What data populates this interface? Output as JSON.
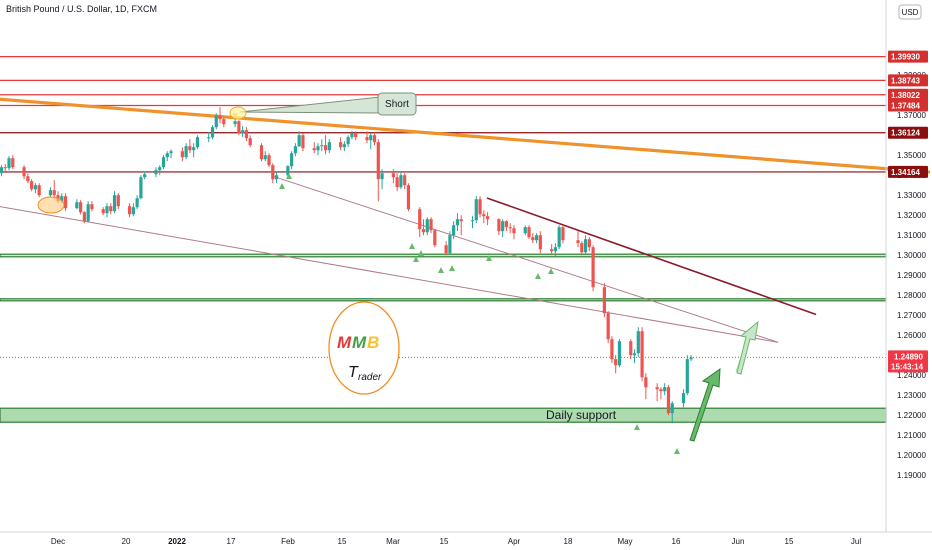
{
  "chart_data": {
    "type": "candlestick",
    "title": "British Pound / U.S. Dollar, 1D, FXCM",
    "currency": "USD",
    "y_ticks": [
      "1.39000",
      "1.38000",
      "1.37000",
      "1.36000",
      "1.35000",
      "1.34000",
      "1.33000",
      "1.32000",
      "1.31000",
      "1.30000",
      "1.29000",
      "1.28000",
      "1.27000",
      "1.26000",
      "1.25000",
      "1.24000",
      "1.23000",
      "1.22000",
      "1.21000",
      "1.20000",
      "1.19000"
    ],
    "x_ticks": [
      "Dec",
      "20",
      "2022",
      "17",
      "Feb",
      "15",
      "Mar",
      "15",
      "Apr",
      "18",
      "May",
      "16",
      "Jun",
      "15",
      "Jul"
    ],
    "resistance_levels": [
      {
        "value": 1.3993,
        "label": "1.39930"
      },
      {
        "value": 1.38743,
        "label": "1.38743"
      },
      {
        "value": 1.38022,
        "label": "1.38022"
      },
      {
        "value": 1.37484,
        "label": "1.37484"
      },
      {
        "value": 1.36124,
        "label": "1.36124"
      },
      {
        "value": 1.34164,
        "label": "1.34164"
      }
    ],
    "last_price": {
      "value": 1.2489,
      "label": "1.24890",
      "countdown": "15:43:14"
    },
    "zones": [
      {
        "low": 1.2992,
        "high": 1.3005
      },
      {
        "low": 1.2772,
        "high": 1.2782
      },
      {
        "low": 1.2165,
        "high": 1.2235,
        "label": "Daily support"
      }
    ],
    "trendlines": [
      {
        "from": [
          "2021-11-12",
          1.3785
        ],
        "to": [
          "2022-07-20",
          1.3416
        ]
      },
      {
        "from": [
          "2022-03-25",
          1.3285
        ],
        "to": [
          "2022-06-20",
          1.2705
        ]
      },
      {
        "from": [
          "2021-11-12",
          1.3255
        ],
        "to": [
          "2022-06-10",
          1.2565
        ]
      },
      {
        "from": [
          "2022-01-27",
          1.3395
        ],
        "to": [
          "2022-06-10",
          1.2565
        ]
      }
    ],
    "annotations": {
      "short_label": "Short",
      "logo_top": "MMB",
      "logo_bottom": "Trader",
      "support_label": "Daily support"
    },
    "ohlc": [
      [
        "2021-11-12",
        1.3405,
        1.3455,
        1.3385,
        1.3425
      ],
      [
        "2021-11-15",
        1.3425,
        1.3445,
        1.339,
        1.341
      ],
      [
        "2021-11-16",
        1.341,
        1.345,
        1.3395,
        1.344
      ],
      [
        "2021-11-17",
        1.344,
        1.3455,
        1.341,
        1.3435
      ],
      [
        "2021-11-18",
        1.3435,
        1.3495,
        1.3425,
        1.3485
      ],
      [
        "2021-11-19",
        1.3485,
        1.35,
        1.343,
        1.344
      ],
      [
        "2021-11-22",
        1.344,
        1.345,
        1.338,
        1.3395
      ],
      [
        "2021-11-23",
        1.3395,
        1.341,
        1.336,
        1.337
      ],
      [
        "2021-11-24",
        1.337,
        1.338,
        1.332,
        1.333
      ],
      [
        "2021-11-25",
        1.333,
        1.336,
        1.331,
        1.335
      ],
      [
        "2021-11-26",
        1.335,
        1.336,
        1.329,
        1.33
      ],
      [
        "2021-11-29",
        1.33,
        1.334,
        1.329,
        1.3325
      ],
      [
        "2021-11-30",
        1.3325,
        1.3375,
        1.328,
        1.33
      ],
      [
        "2021-12-01",
        1.33,
        1.332,
        1.326,
        1.327
      ],
      [
        "2021-12-02",
        1.327,
        1.331,
        1.326,
        1.3295
      ],
      [
        "2021-12-03",
        1.3295,
        1.331,
        1.322,
        1.3235
      ],
      [
        "2021-12-06",
        1.3235,
        1.328,
        1.323,
        1.3265
      ],
      [
        "2021-12-07",
        1.3265,
        1.3275,
        1.3205,
        1.3215
      ],
      [
        "2021-12-08",
        1.3215,
        1.322,
        1.316,
        1.317
      ],
      [
        "2021-12-09",
        1.317,
        1.327,
        1.3165,
        1.3255
      ],
      [
        "2021-12-10",
        1.3255,
        1.327,
        1.322,
        1.323
      ],
      [
        "2021-12-13",
        1.323,
        1.324,
        1.32,
        1.321
      ],
      [
        "2021-12-14",
        1.321,
        1.326,
        1.319,
        1.3245
      ],
      [
        "2021-12-15",
        1.3245,
        1.326,
        1.3205,
        1.322
      ],
      [
        "2021-12-16",
        1.322,
        1.332,
        1.321,
        1.33
      ],
      [
        "2021-12-17",
        1.33,
        1.331,
        1.323,
        1.3245
      ],
      [
        "2021-12-20",
        1.3245,
        1.326,
        1.319,
        1.3205
      ],
      [
        "2021-12-21",
        1.3205,
        1.326,
        1.3195,
        1.324
      ],
      [
        "2021-12-22",
        1.324,
        1.33,
        1.323,
        1.3285
      ],
      [
        "2021-12-23",
        1.3285,
        1.34,
        1.328,
        1.339
      ],
      [
        "2021-12-24",
        1.339,
        1.342,
        1.338,
        1.3405
      ],
      [
        "2021-12-27",
        1.3405,
        1.344,
        1.339,
        1.3425
      ],
      [
        "2021-12-28",
        1.3425,
        1.345,
        1.34,
        1.344
      ],
      [
        "2021-12-29",
        1.344,
        1.35,
        1.343,
        1.349
      ],
      [
        "2021-12-30",
        1.349,
        1.352,
        1.347,
        1.351
      ],
      [
        "2021-12-31",
        1.351,
        1.353,
        1.3485,
        1.352
      ],
      [
        "2022-01-03",
        1.352,
        1.354,
        1.347,
        1.349
      ],
      [
        "2022-01-04",
        1.349,
        1.356,
        1.348,
        1.3545
      ],
      [
        "2022-01-05",
        1.3545,
        1.358,
        1.351,
        1.3525
      ],
      [
        "2022-01-06",
        1.3525,
        1.356,
        1.349,
        1.354
      ],
      [
        "2022-01-07",
        1.354,
        1.36,
        1.353,
        1.359
      ],
      [
        "2022-01-10",
        1.359,
        1.3615,
        1.3565,
        1.359
      ],
      [
        "2022-01-11",
        1.359,
        1.365,
        1.358,
        1.364
      ],
      [
        "2022-01-12",
        1.364,
        1.371,
        1.363,
        1.37
      ],
      [
        "2022-01-13",
        1.37,
        1.374,
        1.366,
        1.368
      ],
      [
        "2022-01-14",
        1.368,
        1.369,
        1.364,
        1.3655
      ],
      [
        "2022-01-17",
        1.3655,
        1.369,
        1.364,
        1.367
      ],
      [
        "2022-01-18",
        1.367,
        1.3675,
        1.36,
        1.361
      ],
      [
        "2022-01-19",
        1.361,
        1.3645,
        1.359,
        1.3625
      ],
      [
        "2022-01-20",
        1.3625,
        1.364,
        1.357,
        1.3585
      ],
      [
        "2022-01-21",
        1.3585,
        1.36,
        1.354,
        1.355
      ],
      [
        "2022-01-24",
        1.355,
        1.356,
        1.347,
        1.348
      ],
      [
        "2022-01-25",
        1.348,
        1.352,
        1.347,
        1.35
      ],
      [
        "2022-01-26",
        1.35,
        1.351,
        1.344,
        1.345
      ],
      [
        "2022-01-27",
        1.345,
        1.346,
        1.336,
        1.338
      ],
      [
        "2022-01-28",
        1.338,
        1.342,
        1.336,
        1.34
      ],
      [
        "2022-01-31",
        1.34,
        1.345,
        1.339,
        1.3445
      ],
      [
        "2022-02-01",
        1.3445,
        1.352,
        1.343,
        1.351
      ],
      [
        "2022-02-02",
        1.351,
        1.356,
        1.3495,
        1.3545
      ],
      [
        "2022-02-03",
        1.3545,
        1.362,
        1.354,
        1.36
      ],
      [
        "2022-02-04",
        1.36,
        1.361,
        1.352,
        1.3535
      ],
      [
        "2022-02-07",
        1.3535,
        1.3565,
        1.351,
        1.3525
      ],
      [
        "2022-02-08",
        1.3525,
        1.356,
        1.35,
        1.3545
      ],
      [
        "2022-02-09",
        1.3545,
        1.358,
        1.352,
        1.355
      ],
      [
        "2022-02-10",
        1.355,
        1.36,
        1.3505,
        1.3525
      ],
      [
        "2022-02-11",
        1.3525,
        1.358,
        1.351,
        1.3565
      ],
      [
        "2022-02-14",
        1.3565,
        1.359,
        1.3525,
        1.354
      ],
      [
        "2022-02-15",
        1.354,
        1.357,
        1.352,
        1.3555
      ],
      [
        "2022-02-16",
        1.3555,
        1.36,
        1.354,
        1.359
      ],
      [
        "2022-02-17",
        1.359,
        1.362,
        1.358,
        1.361
      ],
      [
        "2022-02-18",
        1.361,
        1.362,
        1.3575,
        1.359
      ],
      [
        "2022-02-21",
        1.359,
        1.362,
        1.356,
        1.3575
      ],
      [
        "2022-02-22",
        1.3575,
        1.361,
        1.353,
        1.36
      ],
      [
        "2022-02-23",
        1.36,
        1.3615,
        1.355,
        1.3565
      ],
      [
        "2022-02-24",
        1.3565,
        1.358,
        1.327,
        1.338
      ],
      [
        "2022-02-25",
        1.338,
        1.343,
        1.333,
        1.341
      ],
      [
        "2022-02-28",
        1.341,
        1.343,
        1.336,
        1.339
      ],
      [
        "2022-03-01",
        1.339,
        1.341,
        1.332,
        1.334
      ],
      [
        "2022-03-02",
        1.334,
        1.342,
        1.333,
        1.34
      ],
      [
        "2022-03-03",
        1.34,
        1.341,
        1.333,
        1.335
      ],
      [
        "2022-03-04",
        1.335,
        1.336,
        1.322,
        1.323
      ],
      [
        "2022-03-07",
        1.323,
        1.324,
        1.309,
        1.313
      ],
      [
        "2022-03-08",
        1.313,
        1.318,
        1.31,
        1.3115
      ],
      [
        "2022-03-09",
        1.3115,
        1.319,
        1.31,
        1.318
      ],
      [
        "2022-03-10",
        1.318,
        1.319,
        1.311,
        1.3125
      ],
      [
        "2022-03-11",
        1.3125,
        1.313,
        1.304,
        1.305
      ],
      [
        "2022-03-14",
        1.305,
        1.307,
        1.3,
        1.301
      ],
      [
        "2022-03-15",
        1.301,
        1.312,
        1.3005,
        1.31
      ],
      [
        "2022-03-16",
        1.31,
        1.317,
        1.308,
        1.315
      ],
      [
        "2022-03-17",
        1.315,
        1.321,
        1.312,
        1.318
      ],
      [
        "2022-03-18",
        1.318,
        1.32,
        1.31,
        1.317
      ],
      [
        "2022-03-21",
        1.317,
        1.3195,
        1.3135,
        1.3175
      ],
      [
        "2022-03-22",
        1.3175,
        1.3295,
        1.316,
        1.328
      ],
      [
        "2022-03-23",
        1.328,
        1.3295,
        1.319,
        1.3205
      ],
      [
        "2022-03-24",
        1.3205,
        1.3225,
        1.316,
        1.3195
      ],
      [
        "2022-03-25",
        1.3195,
        1.3215,
        1.315,
        1.318
      ],
      [
        "2022-03-28",
        1.318,
        1.3185,
        1.31,
        1.312
      ],
      [
        "2022-03-29",
        1.312,
        1.318,
        1.309,
        1.317
      ],
      [
        "2022-03-30",
        1.317,
        1.3175,
        1.312,
        1.314
      ],
      [
        "2022-03-31",
        1.314,
        1.316,
        1.311,
        1.3135
      ],
      [
        "2022-04-01",
        1.3135,
        1.315,
        1.308,
        1.311
      ],
      [
        "2022-04-04",
        1.311,
        1.315,
        1.31,
        1.314
      ],
      [
        "2022-04-05",
        1.314,
        1.315,
        1.308,
        1.309
      ],
      [
        "2022-04-06",
        1.309,
        1.311,
        1.306,
        1.3075
      ],
      [
        "2022-04-07",
        1.3075,
        1.311,
        1.306,
        1.31
      ],
      [
        "2022-04-08",
        1.31,
        1.312,
        1.301,
        1.303
      ],
      [
        "2022-04-11",
        1.303,
        1.3055,
        1.3,
        1.302
      ],
      [
        "2022-04-12",
        1.302,
        1.306,
        1.299,
        1.304
      ],
      [
        "2022-04-13",
        1.304,
        1.315,
        1.303,
        1.314
      ],
      [
        "2022-04-14",
        1.314,
        1.315,
        1.306,
        1.3075
      ],
      [
        "2022-04-18",
        1.3075,
        1.312,
        1.304,
        1.306
      ],
      [
        "2022-04-19",
        1.306,
        1.307,
        1.3,
        1.3015
      ],
      [
        "2022-04-20",
        1.3015,
        1.31,
        1.3005,
        1.308
      ],
      [
        "2022-04-21",
        1.308,
        1.309,
        1.302,
        1.304
      ],
      [
        "2022-04-22",
        1.304,
        1.305,
        1.282,
        1.284
      ],
      [
        "2022-04-25",
        1.284,
        1.286,
        1.269,
        1.271
      ],
      [
        "2022-04-26",
        1.271,
        1.272,
        1.256,
        1.258
      ],
      [
        "2022-04-27",
        1.258,
        1.2595,
        1.246,
        1.248
      ],
      [
        "2022-04-28",
        1.248,
        1.25,
        1.241,
        1.245
      ],
      [
        "2022-04-29",
        1.245,
        1.258,
        1.244,
        1.257
      ],
      [
        "2022-05-02",
        1.257,
        1.258,
        1.248,
        1.25
      ],
      [
        "2022-05-03",
        1.25,
        1.253,
        1.246,
        1.251
      ],
      [
        "2022-05-04",
        1.251,
        1.264,
        1.249,
        1.262
      ],
      [
        "2022-05-05",
        1.262,
        1.264,
        1.237,
        1.239
      ],
      [
        "2022-05-06",
        1.239,
        1.241,
        1.228,
        1.234
      ],
      [
        "2022-05-09",
        1.234,
        1.236,
        1.227,
        1.233
      ],
      [
        "2022-05-10",
        1.233,
        1.234,
        1.228,
        1.232
      ],
      [
        "2022-05-11",
        1.232,
        1.236,
        1.23,
        1.234
      ],
      [
        "2022-05-12",
        1.234,
        1.235,
        1.22,
        1.221
      ],
      [
        "2022-05-13",
        1.221,
        1.227,
        1.216,
        1.226
      ],
      [
        "2022-05-16",
        1.226,
        1.233,
        1.224,
        1.231
      ],
      [
        "2022-05-17",
        1.231,
        1.25,
        1.23,
        1.248
      ],
      [
        "2022-05-18",
        1.248,
        1.25,
        1.247,
        1.2489
      ]
    ]
  }
}
